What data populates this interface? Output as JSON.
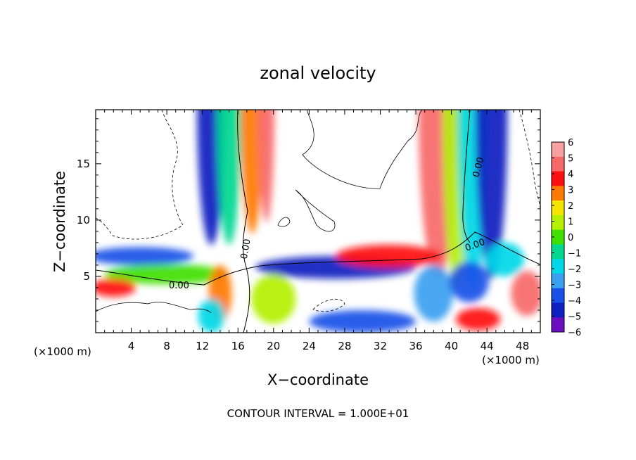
{
  "chart_data": {
    "type": "heatmap",
    "title": "zonal velocity",
    "xlabel": "X−coordinate",
    "ylabel": "Z−coordinate",
    "x_unit_label": "(×1000 m)",
    "xlim": [
      0,
      50
    ],
    "ylim": [
      0,
      19.8
    ],
    "x_ticks": [
      4,
      8,
      12,
      16,
      20,
      24,
      28,
      32,
      36,
      40,
      44,
      48
    ],
    "y_ticks": [
      5,
      10,
      15
    ],
    "colorbar": {
      "ticks": [
        6,
        5,
        4,
        3,
        2,
        1,
        0,
        -1,
        -2,
        -3,
        -4,
        -5,
        -6
      ],
      "labels": [
        "6",
        "5",
        "4",
        "3",
        "2",
        "1",
        "0",
        "−1",
        "−2",
        "−3",
        "−4",
        "−5",
        "−6"
      ],
      "colors": [
        "#f7a0a0",
        "#f76868",
        "#ff1010",
        "#ff7a00",
        "#f4e400",
        "#b4f000",
        "#40e000",
        "#00d890",
        "#00d8e8",
        "#3aa0f0",
        "#1a50e8",
        "#1020c0",
        "#6a10c0"
      ],
      "range": [
        -6,
        6
      ]
    },
    "contour_labels": [
      "0.00",
      "0.00",
      "0.00",
      "0.00"
    ],
    "footer": "CONTOUR INTERVAL = 1.000E+01",
    "field_features": [
      {
        "x": 13,
        "z": 19.8,
        "value": -5,
        "rx": 1.6,
        "rz": 12
      },
      {
        "x": 15,
        "z": 19.8,
        "value": -1,
        "rx": 1.4,
        "rz": 12
      },
      {
        "x": 17.6,
        "z": 19.8,
        "value": 3,
        "rx": 1.3,
        "rz": 11
      },
      {
        "x": 19.2,
        "z": 19.8,
        "value": 5,
        "rx": 0.9,
        "rz": 10
      },
      {
        "x": 38.5,
        "z": 19.8,
        "value": 5,
        "rx": 2.2,
        "rz": 15
      },
      {
        "x": 40.6,
        "z": 19.8,
        "value": 1,
        "rx": 1.6,
        "rz": 16
      },
      {
        "x": 42.4,
        "z": 19.8,
        "value": -2,
        "rx": 1.7,
        "rz": 16
      },
      {
        "x": 44.5,
        "z": 19.8,
        "value": -5,
        "rx": 1.8,
        "rz": 15
      },
      {
        "x": 5,
        "z": 6.8,
        "value": -4,
        "rx": 6,
        "rz": 0.8
      },
      {
        "x": 8,
        "z": 5.2,
        "value": 0,
        "rx": 7,
        "rz": 0.9
      },
      {
        "x": 2,
        "z": 4.0,
        "value": 4,
        "rx": 2.5,
        "rz": 0.8
      },
      {
        "x": 14,
        "z": 3.5,
        "value": 3,
        "rx": 1.3,
        "rz": 2.5
      },
      {
        "x": 13,
        "z": 1.5,
        "value": -2,
        "rx": 1.5,
        "rz": 1.5
      },
      {
        "x": 27,
        "z": 5.8,
        "value": -5,
        "rx": 9,
        "rz": 1.0
      },
      {
        "x": 20,
        "z": 3.0,
        "value": 1,
        "rx": 2.5,
        "rz": 2.2
      },
      {
        "x": 33,
        "z": 6.8,
        "value": 4,
        "rx": 6,
        "rz": 1.0
      },
      {
        "x": 30,
        "z": 1.0,
        "value": -4,
        "rx": 6,
        "rz": 1.0
      },
      {
        "x": 38,
        "z": 3.5,
        "value": -3,
        "rx": 2.2,
        "rz": 2.5
      },
      {
        "x": 42,
        "z": 4.5,
        "value": -4,
        "rx": 2.2,
        "rz": 1.8
      },
      {
        "x": 43,
        "z": 1.2,
        "value": 4,
        "rx": 2.5,
        "rz": 1.0
      },
      {
        "x": 48.5,
        "z": 3.5,
        "value": 5,
        "rx": 1.8,
        "rz": 2.0
      },
      {
        "x": 46,
        "z": 6.5,
        "value": -2,
        "rx": 2.2,
        "rz": 1.5
      }
    ]
  }
}
